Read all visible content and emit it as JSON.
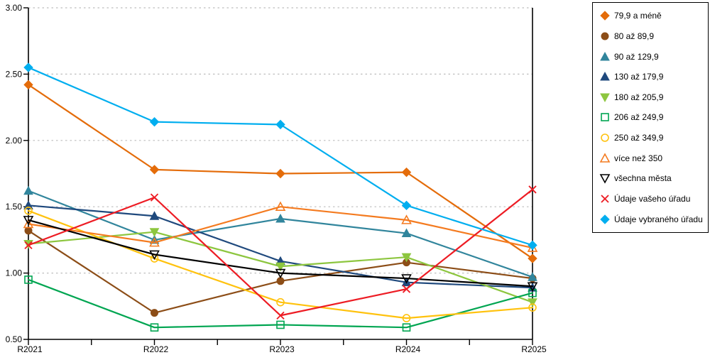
{
  "chart": {
    "background": "#FFFFFF",
    "axis_color": "#000000",
    "grid_color": "#BDBDBD",
    "legend_border_color": "#000000"
  },
  "chart_data": {
    "type": "line",
    "title": "",
    "xlabel": "",
    "ylabel": "",
    "categories": [
      "R2021",
      "R2022",
      "R2023",
      "R2024",
      "R2025"
    ],
    "ylim": [
      0.5,
      3.0
    ],
    "yticks": [
      {
        "value": 0.5,
        "label": "0.50"
      },
      {
        "value": 1.0,
        "label": "1.00"
      },
      {
        "value": 1.5,
        "label": "1.50"
      },
      {
        "value": 2.0,
        "label": "2.00"
      },
      {
        "value": 2.5,
        "label": "2.50"
      },
      {
        "value": 3.0,
        "label": "3.00"
      }
    ],
    "grid_values": [
      1.0,
      1.5,
      2.0,
      2.5,
      3.0
    ],
    "grid": "horizontal-dotted",
    "legend_position": "outside-top-right",
    "series": [
      {
        "name": "79,9 a méně",
        "color": "#E46C0A",
        "marker": "diamond",
        "fill": "filled",
        "values": [
          2.42,
          1.78,
          1.75,
          1.76,
          1.11
        ]
      },
      {
        "name": "80 až 89,9",
        "color": "#8C4D17",
        "marker": "circle",
        "fill": "filled",
        "values": [
          1.32,
          0.7,
          0.94,
          1.08,
          0.96
        ]
      },
      {
        "name": "90 až 129,9",
        "color": "#31859C",
        "marker": "triangle-up",
        "fill": "filled",
        "values": [
          1.62,
          1.25,
          1.41,
          1.3,
          0.97
        ]
      },
      {
        "name": "130 až 179,9",
        "color": "#1F497D",
        "marker": "triangle-up",
        "fill": "filled",
        "values": [
          1.51,
          1.43,
          1.09,
          0.93,
          0.89
        ]
      },
      {
        "name": "180 až 205,9",
        "color": "#8DC63F",
        "marker": "triangle-down",
        "fill": "filled",
        "values": [
          1.22,
          1.31,
          1.05,
          1.12,
          0.78
        ]
      },
      {
        "name": "206 až 249,9",
        "color": "#00A551",
        "marker": "square",
        "fill": "open",
        "values": [
          0.95,
          0.59,
          0.61,
          0.59,
          0.85
        ]
      },
      {
        "name": "250 až 349,9",
        "color": "#FFC20E",
        "marker": "circle",
        "fill": "open",
        "values": [
          1.47,
          1.11,
          0.78,
          0.66,
          0.74
        ]
      },
      {
        "name": "více než 350",
        "color": "#F47B20",
        "marker": "triangle-up",
        "fill": "open",
        "values": [
          1.37,
          1.23,
          1.5,
          1.4,
          1.19
        ]
      },
      {
        "name": "všechna města",
        "color": "#000000",
        "marker": "triangle-down",
        "fill": "open",
        "values": [
          1.4,
          1.14,
          1.0,
          0.96,
          0.9
        ]
      },
      {
        "name": "Údaje vašeho úřadu",
        "color": "#ED1C24",
        "marker": "x",
        "fill": "open",
        "values": [
          1.21,
          1.57,
          0.68,
          0.88,
          1.63
        ]
      },
      {
        "name": "Údaje vybraného úřadu",
        "color": "#00AEEF",
        "marker": "diamond",
        "fill": "filled",
        "values": [
          2.55,
          2.14,
          2.12,
          1.51,
          1.21
        ]
      }
    ]
  }
}
